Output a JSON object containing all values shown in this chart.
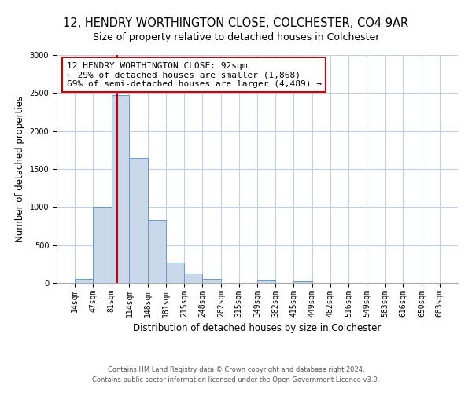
{
  "title": "12, HENDRY WORTHINGTON CLOSE, COLCHESTER, CO4 9AR",
  "subtitle": "Size of property relative to detached houses in Colchester",
  "xlabel": "Distribution of detached houses by size in Colchester",
  "ylabel": "Number of detached properties",
  "bin_edges": [
    14,
    47,
    81,
    114,
    148,
    181,
    215,
    248,
    282,
    315,
    349,
    382,
    415,
    449,
    482,
    516,
    549,
    583,
    616,
    650,
    683
  ],
  "bin_labels": [
    "14sqm",
    "47sqm",
    "81sqm",
    "114sqm",
    "148sqm",
    "181sqm",
    "215sqm",
    "248sqm",
    "282sqm",
    "315sqm",
    "349sqm",
    "382sqm",
    "415sqm",
    "449sqm",
    "482sqm",
    "516sqm",
    "549sqm",
    "583sqm",
    "616sqm",
    "650sqm",
    "683sqm"
  ],
  "counts": [
    50,
    1000,
    2470,
    1650,
    830,
    270,
    120,
    50,
    0,
    0,
    40,
    0,
    20,
    0,
    0,
    0,
    0,
    0,
    0,
    5
  ],
  "bar_color": "#c8d8e8",
  "bar_edge_color": "#6699cc",
  "red_line_x": 92,
  "annotation_title": "12 HENDRY WORTHINGTON CLOSE: 92sqm",
  "annotation_line1": "← 29% of detached houses are smaller (1,868)",
  "annotation_line2": "69% of semi-detached houses are larger (4,489) →",
  "annotation_box_color": "#ffffff",
  "annotation_box_edge": "#cc0000",
  "ylim": [
    0,
    3000
  ],
  "yticks": [
    0,
    500,
    1000,
    1500,
    2000,
    2500,
    3000
  ],
  "footer1": "Contains HM Land Registry data © Crown copyright and database right 2024.",
  "footer2": "Contains public sector information licensed under the Open Government Licence v3.0.",
  "bg_color": "#ffffff",
  "grid_color": "#c0d0e0",
  "title_fontsize": 10.5,
  "subtitle_fontsize": 9,
  "ylabel_fontsize": 8.5,
  "xlabel_fontsize": 8.5,
  "tick_fontsize": 7,
  "annotation_fontsize": 8,
  "footer_fontsize": 6
}
